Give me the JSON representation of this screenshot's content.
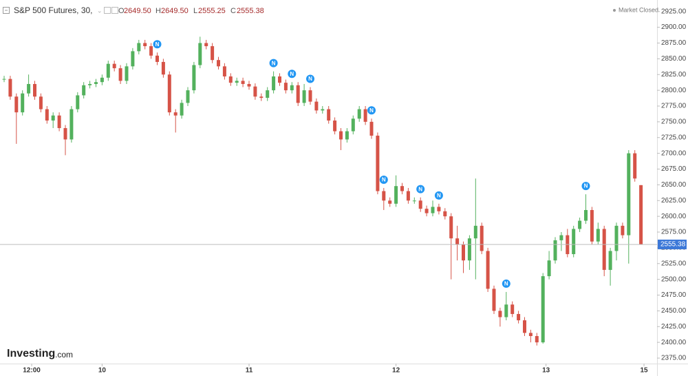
{
  "chart_data": {
    "type": "candlestick",
    "header": {
      "symbol": "S&P 500 Futures, 30,",
      "open_letter": "O",
      "open": "2649.50",
      "high_letter": "H",
      "high": "2649.50",
      "low_letter": "L",
      "low": "2555.25",
      "close_letter": "C",
      "close": "2555.38",
      "status": "Market Closed"
    },
    "brand": {
      "name": "Investing",
      "suffix": ".com"
    },
    "up_color": "#53b15d",
    "down_color": "#d65347",
    "ylim": [
      2363,
      2940
    ],
    "yticks": [
      {
        "value": 2375,
        "label": "2375.00"
      },
      {
        "value": 2400,
        "label": "2400.00"
      },
      {
        "value": 2425,
        "label": "2425.00"
      },
      {
        "value": 2450,
        "label": "2450.00"
      },
      {
        "value": 2475,
        "label": "2475.00"
      },
      {
        "value": 2500,
        "label": "2500.00"
      },
      {
        "value": 2525,
        "label": "2525.00"
      },
      {
        "value": 2550,
        "label": "2550.00"
      },
      {
        "value": 2575,
        "label": "2575.00"
      },
      {
        "value": 2600,
        "label": "2600.00"
      },
      {
        "value": 2625,
        "label": "2625.00"
      },
      {
        "value": 2650,
        "label": "2650.00"
      },
      {
        "value": 2675,
        "label": "2675.00"
      },
      {
        "value": 2700,
        "label": "2700.00"
      },
      {
        "value": 2725,
        "label": "2725.00"
      },
      {
        "value": 2750,
        "label": "2750.00"
      },
      {
        "value": 2775,
        "label": "2775.00"
      },
      {
        "value": 2800,
        "label": "2800.00"
      },
      {
        "value": 2825,
        "label": "2825.00"
      },
      {
        "value": 2850,
        "label": "2850.00"
      },
      {
        "value": 2875,
        "label": "2875.00"
      },
      {
        "value": 2900,
        "label": "2900.00"
      },
      {
        "value": 2925,
        "label": "2925.00"
      }
    ],
    "xticks": [
      {
        "value": 4.5,
        "label": "12:00"
      },
      {
        "value": 16,
        "label": "10"
      },
      {
        "value": 40,
        "label": "11"
      },
      {
        "value": 64,
        "label": "12"
      },
      {
        "value": 88.5,
        "label": "13"
      },
      {
        "value": 104.5,
        "label": "15"
      }
    ],
    "last_price": 2555.38,
    "news": {
      "label": "N",
      "candles": [
        25,
        44,
        47,
        50,
        60,
        62,
        68,
        71,
        82,
        95
      ]
    },
    "open": [
      2818,
      2818,
      2790,
      2765,
      2795,
      2810,
      2790,
      2770,
      2752,
      2760,
      2740,
      2722,
      2770,
      2792,
      2808,
      2810,
      2813,
      2820,
      2842,
      2835,
      2815,
      2838,
      2862,
      2875,
      2870,
      2855,
      2845,
      2825,
      2765,
      2760,
      2780,
      2800,
      2840,
      2875,
      2870,
      2848,
      2838,
      2822,
      2812,
      2815,
      2810,
      2806,
      2790,
      2788,
      2800,
      2822,
      2812,
      2800,
      2808,
      2780,
      2800,
      2782,
      2768,
      2770,
      2752,
      2735,
      2722,
      2735,
      2755,
      2770,
      2750,
      2728,
      2640,
      2625,
      2620,
      2648,
      2640,
      2625,
      2625,
      2612,
      2605,
      2615,
      2608,
      2600,
      2565,
      2555,
      2530,
      2565,
      2585,
      2545,
      2485,
      2450,
      2440,
      2460,
      2445,
      2435,
      2415,
      2410,
      2400,
      2505,
      2530,
      2562,
      2570,
      2540,
      2580,
      2593,
      2610,
      2560,
      2580,
      2515,
      2545,
      2585,
      2570,
      2700,
      2649.5
    ],
    "high": [
      2823,
      2823,
      2795,
      2800,
      2825,
      2815,
      2795,
      2775,
      2765,
      2765,
      2745,
      2775,
      2797,
      2813,
      2815,
      2818,
      2825,
      2847,
      2847,
      2840,
      2843,
      2867,
      2880,
      2880,
      2875,
      2860,
      2850,
      2830,
      2770,
      2785,
      2805,
      2845,
      2885,
      2880,
      2875,
      2853,
      2843,
      2827,
      2820,
      2820,
      2815,
      2811,
      2795,
      2805,
      2830,
      2827,
      2817,
      2813,
      2813,
      2810,
      2805,
      2787,
      2775,
      2775,
      2757,
      2740,
      2740,
      2760,
      2775,
      2775,
      2755,
      2733,
      2645,
      2630,
      2665,
      2653,
      2645,
      2630,
      2630,
      2617,
      2625,
      2620,
      2613,
      2605,
      2585,
      2560,
      2570,
      2660,
      2590,
      2550,
      2490,
      2455,
      2480,
      2465,
      2450,
      2440,
      2420,
      2415,
      2510,
      2545,
      2567,
      2575,
      2580,
      2585,
      2598,
      2635,
      2615,
      2590,
      2585,
      2550,
      2590,
      2590,
      2705,
      2705,
      2649.5
    ],
    "low": [
      2813,
      2785,
      2715,
      2760,
      2790,
      2785,
      2765,
      2747,
      2740,
      2735,
      2697,
      2717,
      2765,
      2787,
      2803,
      2805,
      2808,
      2815,
      2830,
      2810,
      2810,
      2833,
      2857,
      2865,
      2850,
      2840,
      2820,
      2760,
      2733,
      2755,
      2775,
      2795,
      2835,
      2865,
      2843,
      2833,
      2817,
      2807,
      2807,
      2805,
      2801,
      2785,
      2783,
      2783,
      2795,
      2807,
      2795,
      2795,
      2775,
      2775,
      2777,
      2763,
      2763,
      2747,
      2730,
      2705,
      2717,
      2730,
      2750,
      2745,
      2723,
      2635,
      2610,
      2615,
      2615,
      2635,
      2620,
      2620,
      2607,
      2600,
      2600,
      2603,
      2595,
      2500,
      2530,
      2510,
      2515,
      2500,
      2540,
      2480,
      2445,
      2425,
      2435,
      2440,
      2430,
      2410,
      2400,
      2395,
      2398,
      2500,
      2525,
      2545,
      2535,
      2535,
      2575,
      2588,
      2555,
      2555,
      2505,
      2490,
      2530,
      2565,
      2525,
      2655,
      2555.25
    ],
    "close": [
      2818,
      2790,
      2765,
      2795,
      2810,
      2790,
      2770,
      2752,
      2760,
      2740,
      2722,
      2770,
      2792,
      2808,
      2810,
      2813,
      2820,
      2842,
      2835,
      2815,
      2838,
      2862,
      2875,
      2870,
      2855,
      2845,
      2825,
      2765,
      2760,
      2780,
      2800,
      2840,
      2875,
      2870,
      2848,
      2838,
      2822,
      2812,
      2815,
      2810,
      2806,
      2790,
      2788,
      2800,
      2822,
      2812,
      2800,
      2808,
      2780,
      2800,
      2782,
      2768,
      2770,
      2752,
      2735,
      2722,
      2735,
      2755,
      2770,
      2750,
      2728,
      2640,
      2625,
      2620,
      2648,
      2640,
      2625,
      2625,
      2612,
      2605,
      2615,
      2608,
      2600,
      2565,
      2555,
      2530,
      2565,
      2585,
      2545,
      2485,
      2450,
      2440,
      2460,
      2445,
      2435,
      2415,
      2410,
      2400,
      2505,
      2530,
      2562,
      2570,
      2540,
      2580,
      2593,
      2610,
      2560,
      2580,
      2515,
      2545,
      2585,
      2570,
      2700,
      2660,
      2555.38
    ]
  }
}
